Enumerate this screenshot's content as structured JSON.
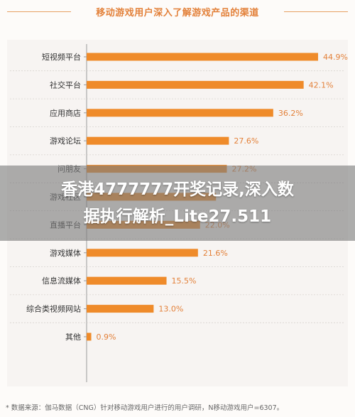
{
  "chart_data": {
    "type": "bar",
    "orientation": "horizontal",
    "title": "移动游戏用户深入了解游戏产品的渠道",
    "categories": [
      "短视频平台",
      "社交平台",
      "应用商店",
      "游戏论坛",
      "问朋友",
      "游戏社区",
      "直播平台",
      "游戏媒体",
      "信息流媒体",
      "综合类视频网站",
      "其他"
    ],
    "values": [
      44.9,
      42.1,
      36.2,
      27.6,
      27.2,
      25.1,
      22.0,
      21.6,
      15.5,
      13.0,
      0.9
    ],
    "value_labels": [
      "44.9%",
      "42.1%",
      "36.2%",
      "27.6%",
      "27.2%",
      "",
      "22.0%",
      "21.6%",
      "15.5%",
      "13.0%",
      "0.9%"
    ],
    "xlim": [
      0,
      50
    ],
    "grid": false,
    "bar_color": "#ef8b2a"
  },
  "overlay": {
    "line1": "香港4777777开奖记录,深入数",
    "line2": "据执行解析_Lite27.511"
  },
  "footnote": "*  数据来源：伽马数据（CNG）针对移动游戏用户进行的用户调研，N移动游戏用户=6307。"
}
